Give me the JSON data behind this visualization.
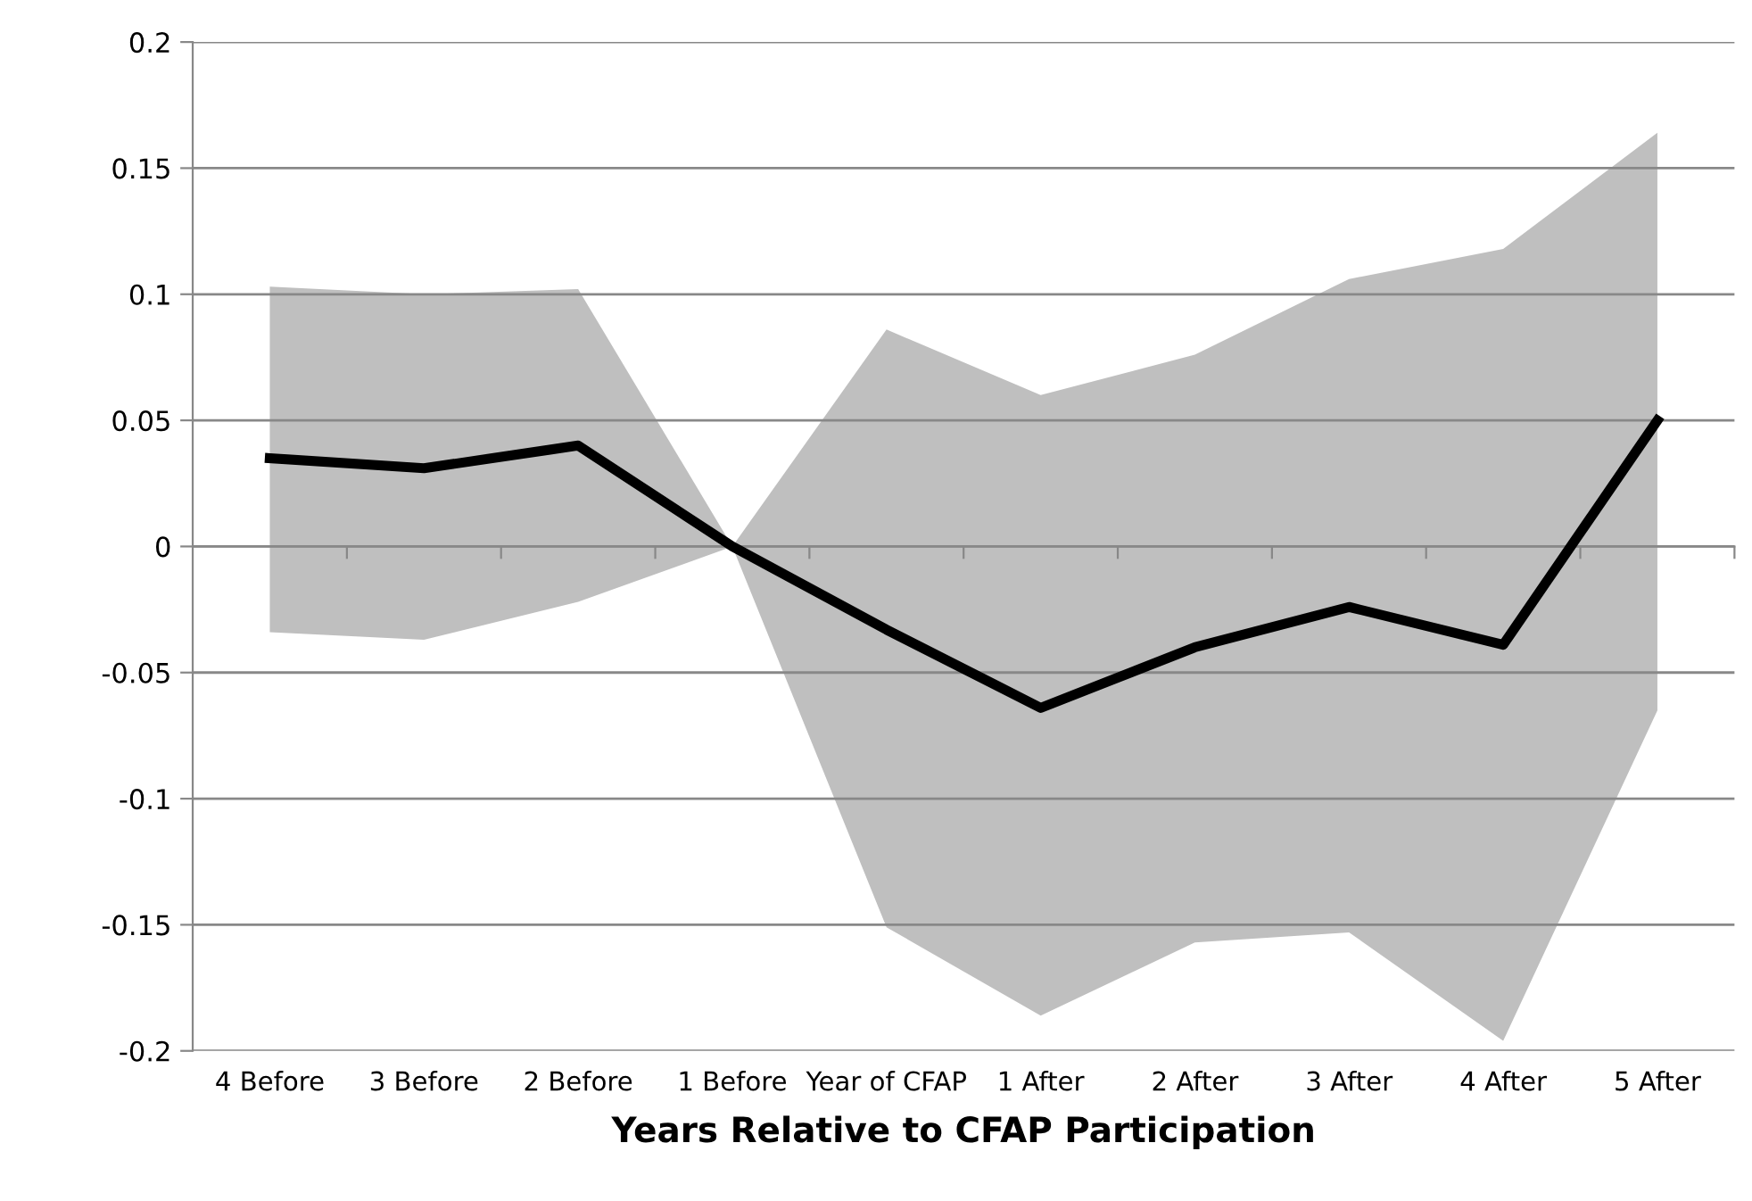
{
  "chart_data": {
    "type": "line",
    "xlabel": "Years Relative to CFAP Participation",
    "categories": [
      "4 Before",
      "3 Before",
      "2 Before",
      "1 Before",
      "Year of CFAP",
      "1 After",
      "2 After",
      "3 After",
      "4 After",
      "5 After"
    ],
    "series": [
      {
        "color": "#000000",
        "values": [
          0.035,
          0.031,
          0.04,
          0,
          -0.033,
          -0.064,
          -0.04,
          -0.024,
          -0.039,
          0.05
        ],
        "lower": [
          -0.034,
          -0.037,
          -0.022,
          0,
          -0.151,
          -0.186,
          -0.157,
          -0.153,
          -0.196,
          -0.065
        ],
        "upper": [
          0.103,
          0.1,
          0.102,
          0,
          0.086,
          0.06,
          0.076,
          0.106,
          0.118,
          0.164
        ]
      }
    ],
    "ylim": [
      -0.2,
      0.2
    ],
    "yticks": [
      -0.2,
      -0.15,
      -0.1,
      -0.05,
      0,
      0.05,
      0.1,
      0.15,
      0.2
    ],
    "grid": "y",
    "marker": "none",
    "line_style": "solid"
  }
}
